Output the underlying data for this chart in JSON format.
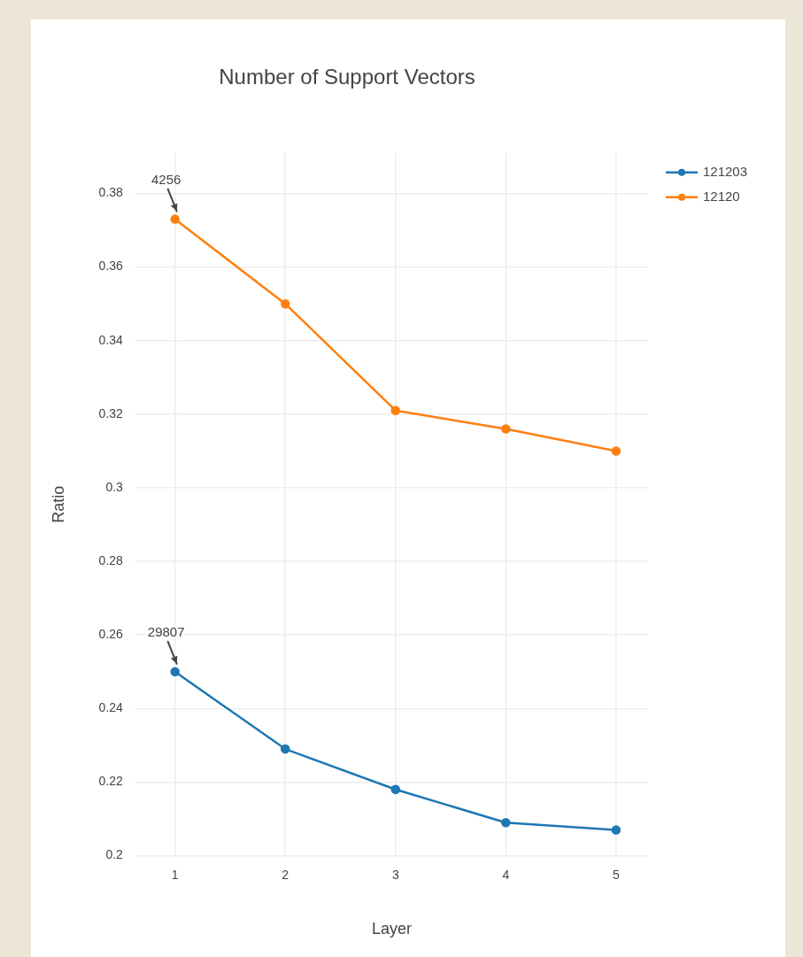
{
  "chart_data": {
    "type": "line",
    "title": "Number of Support Vectors",
    "xlabel": "Layer",
    "ylabel": "Ratio",
    "x": [
      1,
      2,
      3,
      4,
      5
    ],
    "series": [
      {
        "name": "121203",
        "color": "#1f77b4",
        "values": [
          0.25,
          0.229,
          0.218,
          0.209,
          0.207
        ]
      },
      {
        "name": "12120",
        "color": "#ff7f0e",
        "values": [
          0.373,
          0.35,
          0.321,
          0.316,
          0.31
        ]
      }
    ],
    "xlim": [
      0.64,
      5.29
    ],
    "xticks": [
      1,
      2,
      3,
      4,
      5
    ],
    "ylim": [
      0.2,
      0.391
    ],
    "yticks": [
      0.2,
      0.22,
      0.24,
      0.26,
      0.28,
      0.3,
      0.32,
      0.34,
      0.36,
      0.38
    ],
    "annotations": [
      {
        "text": "4256",
        "x": 1,
        "y": 0.373
      },
      {
        "text": "29807",
        "x": 1,
        "y": 0.25
      }
    ],
    "grid": true,
    "legend": "top right",
    "marker": "circle",
    "line_style": "solid"
  }
}
